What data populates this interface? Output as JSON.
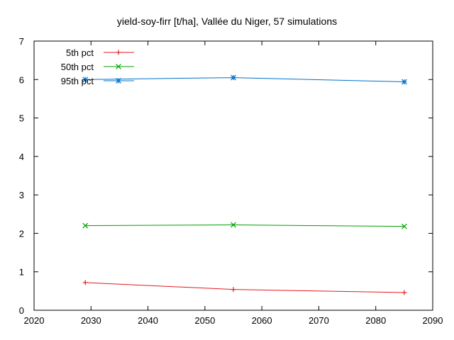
{
  "chart_data": {
    "type": "line",
    "title": "yield-soy-firr [t/ha], Vallée du Niger, 57 simulations",
    "xlabel": "",
    "ylabel": "",
    "xlim": [
      2020,
      2090
    ],
    "ylim": [
      0,
      7
    ],
    "xticks": [
      2020,
      2030,
      2040,
      2050,
      2060,
      2070,
      2080,
      2090
    ],
    "yticks": [
      0,
      1,
      2,
      3,
      4,
      5,
      6,
      7
    ],
    "x": [
      2029,
      2055,
      2085
    ],
    "grid": false,
    "legend_position": "top-left",
    "series": [
      {
        "name": "5th pct",
        "values": [
          0.72,
          0.54,
          0.46
        ],
        "color": "#e41a1c",
        "marker": "plus"
      },
      {
        "name": "50th pct",
        "values": [
          2.2,
          2.22,
          2.18
        ],
        "color": "#00a000",
        "marker": "cross"
      },
      {
        "name": "95th pct",
        "values": [
          6.0,
          6.05,
          5.94
        ],
        "color": "#0070c8",
        "marker": "star"
      }
    ]
  }
}
